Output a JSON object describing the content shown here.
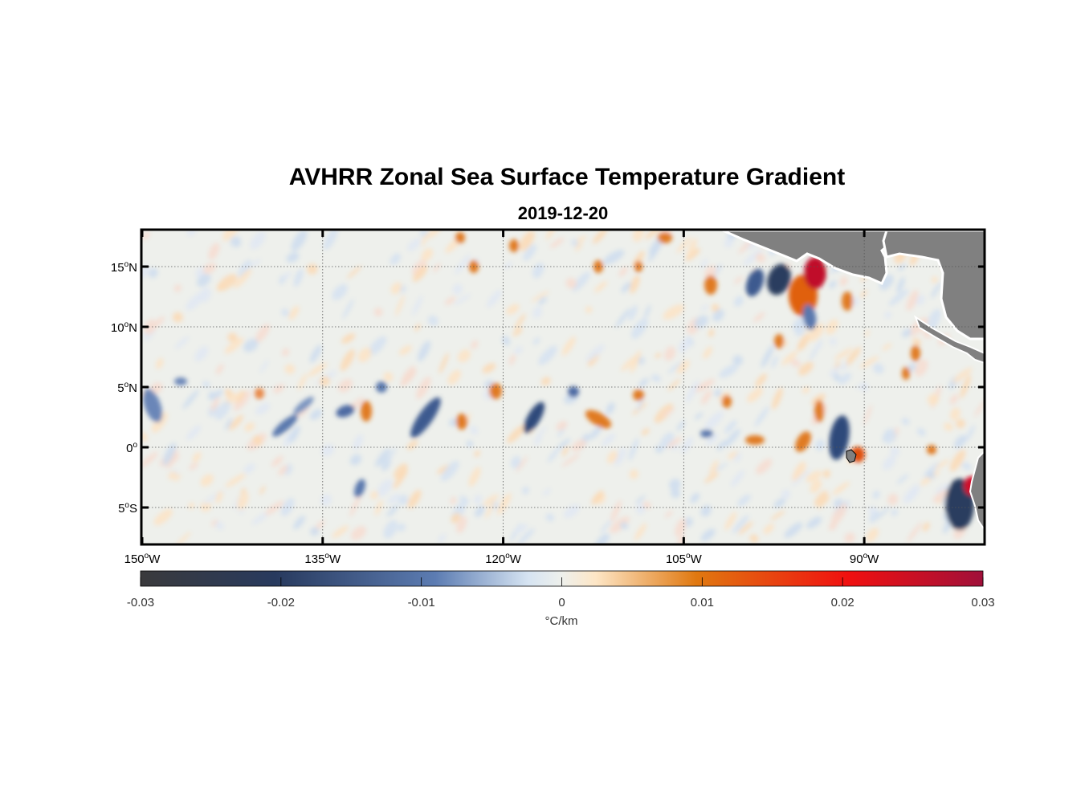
{
  "title": "AVHRR Zonal Sea Surface Temperature Gradient",
  "subtitle": "2019-12-20",
  "map": {
    "lon_range": [
      -150,
      -80
    ],
    "lat_range": [
      -8,
      18
    ],
    "lon_ticks": [
      {
        "value": -150,
        "deg": "150",
        "hemi": "W"
      },
      {
        "value": -135,
        "deg": "135",
        "hemi": "W"
      },
      {
        "value": -120,
        "deg": "120",
        "hemi": "W"
      },
      {
        "value": -105,
        "deg": "105",
        "hemi": "W"
      },
      {
        "value": -90,
        "deg": "90",
        "hemi": "W"
      }
    ],
    "lat_ticks": [
      {
        "value": 15,
        "deg": "15",
        "hemi": "N"
      },
      {
        "value": 10,
        "deg": "10",
        "hemi": "N"
      },
      {
        "value": 5,
        "deg": "5",
        "hemi": "N"
      },
      {
        "value": 0,
        "deg": "0",
        "hemi": ""
      },
      {
        "value": -5,
        "deg": "5",
        "hemi": "S"
      }
    ],
    "grid": true,
    "land_color": "#808080",
    "ocean_background": "#eef0ec"
  },
  "colorbar": {
    "ticks": [
      "-0.03",
      "-0.02",
      "-0.01",
      "0",
      "0.01",
      "0.02",
      "0.03"
    ],
    "tick_values": [
      -0.03,
      -0.02,
      -0.01,
      0,
      0.01,
      0.02,
      0.03
    ],
    "unit_label": "°C/km",
    "colors": [
      "#3a3a3c",
      "#283a5e",
      "#4a6aa0",
      "#dbe6f0",
      "#fbe9cf",
      "#e07a10",
      "#f01010",
      "#a0103a"
    ]
  }
}
